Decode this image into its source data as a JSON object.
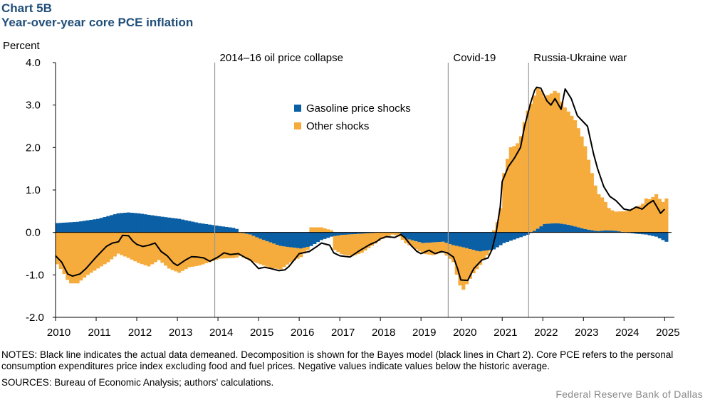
{
  "header": {
    "chart_number": "Chart 5B",
    "title": "Year-over-year core PCE inflation"
  },
  "notes": "NOTES: Black line indicates the actual data demeaned. Decomposition is shown for the Bayes model (black lines in Chart 2). Core PCE refers to the personal consumption expenditures price index excluding food and fuel prices. Negative values indicate values below the historic average.",
  "sources": "SOURCES: Bureau of Economic Analysis; authors' calculations.",
  "footer": "Federal Reserve Bank of Dallas",
  "colors": {
    "gasoline": "#0b5fa5",
    "other": "#f6ac3c",
    "line": "#000000",
    "event_line": "#9a9a9a",
    "title": "#1f4e79"
  },
  "chart_data": {
    "type": "bar",
    "stacked": true,
    "ylabel": "Percent",
    "ylim": [
      -2.0,
      4.0
    ],
    "yticks": [
      "-2.0",
      "-1.0",
      "0.0",
      "1.0",
      "2.0",
      "3.0",
      "4.0"
    ],
    "xlim": [
      2010.0,
      2025.17
    ],
    "xticks": [
      "2010",
      "2011",
      "2012",
      "2013",
      "2014",
      "2015",
      "2016",
      "2017",
      "2018",
      "2019",
      "2020",
      "2021",
      "2022",
      "2023",
      "2024",
      "2025"
    ],
    "events": [
      {
        "x": 2013.92,
        "label": "2014–16 oil price collapse"
      },
      {
        "x": 2019.67,
        "label": "Covid-19"
      },
      {
        "x": 2021.65,
        "label": "Russia-Ukraine war"
      }
    ],
    "legend": [
      "Gasoline price shocks",
      "Other shocks"
    ],
    "series": [
      {
        "name": "Gasoline price shocks",
        "points": [
          [
            2010.0,
            0.22
          ],
          [
            2010.5,
            0.25
          ],
          [
            2011.0,
            0.32
          ],
          [
            2011.5,
            0.45
          ],
          [
            2011.75,
            0.47
          ],
          [
            2012.0,
            0.45
          ],
          [
            2012.5,
            0.38
          ],
          [
            2013.0,
            0.32
          ],
          [
            2013.5,
            0.22
          ],
          [
            2014.0,
            0.15
          ],
          [
            2014.4,
            0.1
          ],
          [
            2014.5,
            0.0
          ],
          [
            2014.75,
            -0.05
          ],
          [
            2015.0,
            -0.15
          ],
          [
            2015.5,
            -0.32
          ],
          [
            2016.0,
            -0.38
          ],
          [
            2016.25,
            -0.32
          ],
          [
            2016.5,
            -0.18
          ],
          [
            2016.75,
            -0.1
          ],
          [
            2017.0,
            -0.06
          ],
          [
            2017.5,
            -0.03
          ],
          [
            2018.0,
            0.0
          ],
          [
            2018.4,
            0.0
          ],
          [
            2018.6,
            -0.15
          ],
          [
            2019.0,
            -0.25
          ],
          [
            2019.5,
            -0.22
          ],
          [
            2019.75,
            -0.3
          ],
          [
            2020.0,
            -0.35
          ],
          [
            2020.4,
            -0.45
          ],
          [
            2020.75,
            -0.4
          ],
          [
            2021.0,
            -0.25
          ],
          [
            2021.3,
            -0.15
          ],
          [
            2021.6,
            -0.05
          ],
          [
            2021.85,
            0.1
          ],
          [
            2022.0,
            0.2
          ],
          [
            2022.3,
            0.22
          ],
          [
            2022.6,
            0.18
          ],
          [
            2023.0,
            0.08
          ],
          [
            2023.3,
            0.03
          ],
          [
            2023.5,
            0.05
          ],
          [
            2023.75,
            0.04
          ],
          [
            2024.0,
            0.0
          ],
          [
            2024.25,
            -0.03
          ],
          [
            2024.5,
            -0.05
          ],
          [
            2024.75,
            -0.1
          ],
          [
            2025.0,
            -0.22
          ]
        ]
      },
      {
        "name": "Other shocks",
        "points": [
          [
            2010.0,
            -0.75
          ],
          [
            2010.15,
            -0.95
          ],
          [
            2010.3,
            -1.2
          ],
          [
            2010.5,
            -1.2
          ],
          [
            2010.75,
            -1.0
          ],
          [
            2011.0,
            -0.85
          ],
          [
            2011.25,
            -0.7
          ],
          [
            2011.5,
            -0.5
          ],
          [
            2011.75,
            -0.6
          ],
          [
            2012.0,
            -0.72
          ],
          [
            2012.25,
            -0.8
          ],
          [
            2012.5,
            -0.65
          ],
          [
            2012.75,
            -0.85
          ],
          [
            2013.0,
            -0.95
          ],
          [
            2013.25,
            -0.82
          ],
          [
            2013.5,
            -0.78
          ],
          [
            2013.75,
            -0.7
          ],
          [
            2014.0,
            -0.62
          ],
          [
            2014.4,
            -0.6
          ],
          [
            2014.5,
            -0.55
          ],
          [
            2014.75,
            -0.62
          ],
          [
            2015.0,
            -0.6
          ],
          [
            2015.25,
            -0.6
          ],
          [
            2015.5,
            -0.55
          ],
          [
            2015.75,
            -0.35
          ],
          [
            2016.0,
            -0.2
          ],
          [
            2016.2,
            -0.05
          ],
          [
            2016.25,
            0.12
          ],
          [
            2016.5,
            0.12
          ],
          [
            2016.75,
            0.05
          ],
          [
            2016.8,
            -0.3
          ],
          [
            2017.0,
            -0.45
          ],
          [
            2017.25,
            -0.52
          ],
          [
            2017.5,
            -0.45
          ],
          [
            2017.75,
            -0.3
          ],
          [
            2018.0,
            -0.15
          ],
          [
            2018.25,
            -0.05
          ],
          [
            2018.5,
            -0.1
          ],
          [
            2018.75,
            -0.15
          ],
          [
            2019.0,
            -0.25
          ],
          [
            2019.25,
            -0.3
          ],
          [
            2019.5,
            -0.25
          ],
          [
            2019.75,
            -0.4
          ],
          [
            2019.9,
            -0.9
          ],
          [
            2020.0,
            -1.0
          ],
          [
            2020.25,
            -0.55
          ],
          [
            2020.5,
            -0.2
          ],
          [
            2020.75,
            0.05
          ],
          [
            2020.9,
            0.4
          ],
          [
            2021.0,
            1.4
          ],
          [
            2021.15,
            2.0
          ],
          [
            2021.3,
            2.05
          ],
          [
            2021.4,
            2.2
          ],
          [
            2021.55,
            2.8
          ],
          [
            2021.7,
            3.1
          ],
          [
            2021.85,
            3.35
          ],
          [
            2022.0,
            3.0
          ],
          [
            2022.15,
            3.05
          ],
          [
            2022.3,
            3.15
          ],
          [
            2022.45,
            2.8
          ],
          [
            2022.6,
            2.65
          ],
          [
            2022.75,
            2.5
          ],
          [
            2022.9,
            2.2
          ],
          [
            2023.0,
            1.95
          ],
          [
            2023.15,
            1.4
          ],
          [
            2023.3,
            0.9
          ],
          [
            2023.45,
            0.75
          ],
          [
            2023.6,
            0.5
          ],
          [
            2023.75,
            0.45
          ],
          [
            2024.0,
            0.5
          ],
          [
            2024.25,
            0.6
          ],
          [
            2024.4,
            0.65
          ],
          [
            2024.5,
            0.8
          ],
          [
            2024.6,
            0.78
          ],
          [
            2024.75,
            0.9
          ],
          [
            2024.9,
            0.7
          ],
          [
            2025.0,
            0.8
          ]
        ]
      },
      {
        "name": "Actual (demeaned)",
        "points": [
          [
            2010.0,
            -0.55
          ],
          [
            2010.15,
            -0.7
          ],
          [
            2010.3,
            -0.98
          ],
          [
            2010.42,
            -1.03
          ],
          [
            2010.6,
            -0.98
          ],
          [
            2010.75,
            -0.85
          ],
          [
            2011.0,
            -0.58
          ],
          [
            2011.25,
            -0.33
          ],
          [
            2011.4,
            -0.25
          ],
          [
            2011.55,
            -0.22
          ],
          [
            2011.65,
            -0.07
          ],
          [
            2011.8,
            -0.08
          ],
          [
            2011.9,
            -0.2
          ],
          [
            2012.0,
            -0.28
          ],
          [
            2012.15,
            -0.33
          ],
          [
            2012.3,
            -0.3
          ],
          [
            2012.45,
            -0.25
          ],
          [
            2012.6,
            -0.45
          ],
          [
            2012.75,
            -0.55
          ],
          [
            2012.9,
            -0.72
          ],
          [
            2013.0,
            -0.78
          ],
          [
            2013.2,
            -0.65
          ],
          [
            2013.35,
            -0.57
          ],
          [
            2013.5,
            -0.58
          ],
          [
            2013.65,
            -0.6
          ],
          [
            2013.8,
            -0.68
          ],
          [
            2014.0,
            -0.58
          ],
          [
            2014.15,
            -0.48
          ],
          [
            2014.3,
            -0.52
          ],
          [
            2014.5,
            -0.5
          ],
          [
            2014.65,
            -0.58
          ],
          [
            2014.8,
            -0.65
          ],
          [
            2015.0,
            -0.85
          ],
          [
            2015.15,
            -0.82
          ],
          [
            2015.3,
            -0.85
          ],
          [
            2015.5,
            -0.9
          ],
          [
            2015.65,
            -0.88
          ],
          [
            2015.75,
            -0.8
          ],
          [
            2015.9,
            -0.62
          ],
          [
            2016.0,
            -0.5
          ],
          [
            2016.25,
            -0.45
          ],
          [
            2016.45,
            -0.32
          ],
          [
            2016.55,
            -0.25
          ],
          [
            2016.75,
            -0.3
          ],
          [
            2016.85,
            -0.48
          ],
          [
            2017.0,
            -0.55
          ],
          [
            2017.25,
            -0.58
          ],
          [
            2017.5,
            -0.42
          ],
          [
            2017.75,
            -0.28
          ],
          [
            2017.9,
            -0.22
          ],
          [
            2018.0,
            -0.15
          ],
          [
            2018.15,
            -0.1
          ],
          [
            2018.35,
            -0.12
          ],
          [
            2018.5,
            -0.05
          ],
          [
            2018.6,
            -0.12
          ],
          [
            2018.75,
            -0.3
          ],
          [
            2018.9,
            -0.45
          ],
          [
            2019.0,
            -0.5
          ],
          [
            2019.2,
            -0.42
          ],
          [
            2019.35,
            -0.5
          ],
          [
            2019.5,
            -0.45
          ],
          [
            2019.65,
            -0.48
          ],
          [
            2019.8,
            -0.58
          ],
          [
            2019.9,
            -0.85
          ],
          [
            2019.98,
            -1.12
          ],
          [
            2020.15,
            -1.13
          ],
          [
            2020.3,
            -0.85
          ],
          [
            2020.5,
            -0.65
          ],
          [
            2020.65,
            -0.6
          ],
          [
            2020.75,
            -0.4
          ],
          [
            2020.85,
            0.0
          ],
          [
            2020.95,
            0.6
          ],
          [
            2021.0,
            1.2
          ],
          [
            2021.15,
            1.55
          ],
          [
            2021.3,
            1.75
          ],
          [
            2021.45,
            2.0
          ],
          [
            2021.55,
            2.5
          ],
          [
            2021.7,
            3.05
          ],
          [
            2021.8,
            3.35
          ],
          [
            2021.85,
            3.42
          ],
          [
            2021.95,
            3.4
          ],
          [
            2022.1,
            3.1
          ],
          [
            2022.2,
            3.0
          ],
          [
            2022.3,
            3.15
          ],
          [
            2022.45,
            2.9
          ],
          [
            2022.55,
            3.38
          ],
          [
            2022.7,
            3.15
          ],
          [
            2022.85,
            2.75
          ],
          [
            2023.0,
            2.6
          ],
          [
            2023.1,
            2.5
          ],
          [
            2023.25,
            1.85
          ],
          [
            2023.35,
            1.5
          ],
          [
            2023.5,
            1.08
          ],
          [
            2023.65,
            0.85
          ],
          [
            2023.8,
            0.75
          ],
          [
            2024.0,
            0.55
          ],
          [
            2024.15,
            0.52
          ],
          [
            2024.3,
            0.6
          ],
          [
            2024.45,
            0.55
          ],
          [
            2024.6,
            0.68
          ],
          [
            2024.72,
            0.75
          ],
          [
            2024.8,
            0.62
          ],
          [
            2024.9,
            0.45
          ],
          [
            2025.0,
            0.55
          ]
        ]
      }
    ]
  }
}
